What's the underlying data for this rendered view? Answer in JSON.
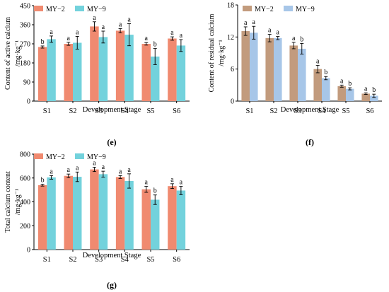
{
  "chart_data": [
    {
      "type": "bar",
      "panel_label": "(e)",
      "categories": [
        "S1",
        "S2",
        "S3",
        "S4",
        "S5",
        "S6"
      ],
      "series": [
        {
          "name": "MY−2",
          "color": "#f08a70",
          "values": [
            255,
            270,
            352,
            332,
            270,
            295
          ],
          "errors": [
            5,
            7,
            22,
            10,
            6,
            8
          ],
          "letters": [
            "b",
            "a",
            "a",
            "a",
            "a",
            "a"
          ]
        },
        {
          "name": "MY−9",
          "color": "#73d2dc",
          "values": [
            292,
            275,
            302,
            313,
            210,
            262
          ],
          "errors": [
            15,
            30,
            28,
            52,
            38,
            28
          ],
          "letters": [
            "a",
            "a",
            "a",
            "a",
            "b",
            "a"
          ]
        }
      ],
      "ylabel_line1": "Content of active calcium",
      "ylabel_line2": "/mg·kg⁻¹",
      "xlabel": "Development Stage",
      "ylim": [
        0,
        450
      ],
      "yticks": [
        "0",
        "90",
        "180",
        "270",
        "360",
        "450"
      ],
      "legend_position": "top-left",
      "grid": false
    },
    {
      "type": "bar",
      "panel_label": "(f)",
      "categories": [
        "S1",
        "S2",
        "S3",
        "S4",
        "S5",
        "S6"
      ],
      "series": [
        {
          "name": "MY−2",
          "color": "#c29b7d",
          "values": [
            13.1,
            11.8,
            10.4,
            6.0,
            2.8,
            1.4
          ],
          "errors": [
            0.8,
            0.7,
            0.6,
            0.7,
            0.2,
            0.15
          ],
          "letters": [
            "a",
            "a",
            "a",
            "a",
            "a",
            "a"
          ]
        },
        {
          "name": "MY−9",
          "color": "#a7c6e8",
          "values": [
            12.8,
            11.8,
            9.8,
            4.3,
            2.3,
            1.0
          ],
          "errors": [
            1.2,
            0.3,
            1.0,
            0.3,
            0.2,
            0.3
          ],
          "letters": [
            "a",
            "a",
            "b",
            "b",
            "b",
            "b"
          ]
        }
      ],
      "ylabel_line1": "Content of residual calcium",
      "ylabel_line2": "/mg·kg⁻¹",
      "xlabel": "Development Stage",
      "ylim": [
        0,
        18
      ],
      "yticks": [
        "0",
        "6",
        "12",
        "18"
      ],
      "legend_position": "top-left",
      "grid": false
    },
    {
      "type": "bar",
      "panel_label": "(g)",
      "categories": [
        "S1",
        "S2",
        "S3",
        "S4",
        "S5",
        "S6"
      ],
      "series": [
        {
          "name": "MY−2",
          "color": "#f08a70",
          "values": [
            540,
            618,
            672,
            608,
            505,
            532
          ],
          "errors": [
            8,
            15,
            18,
            12,
            25,
            20
          ],
          "letters": [
            "b",
            "a",
            "a",
            "a",
            "a",
            "a"
          ]
        },
        {
          "name": "MY−9",
          "color": "#73d2dc",
          "values": [
            605,
            610,
            632,
            575,
            418,
            495
          ],
          "errors": [
            15,
            40,
            25,
            60,
            40,
            35
          ],
          "letters": [
            "a",
            "a",
            "a",
            "a",
            "b",
            "a"
          ]
        }
      ],
      "ylabel_line1": "Total calcium content",
      "ylabel_line2": "/mg·kg⁻¹",
      "xlabel": "Development Stage",
      "ylim": [
        0,
        800
      ],
      "yticks": [
        "0",
        "200",
        "400",
        "600",
        "800"
      ],
      "legend_position": "top-left",
      "grid": false
    }
  ]
}
